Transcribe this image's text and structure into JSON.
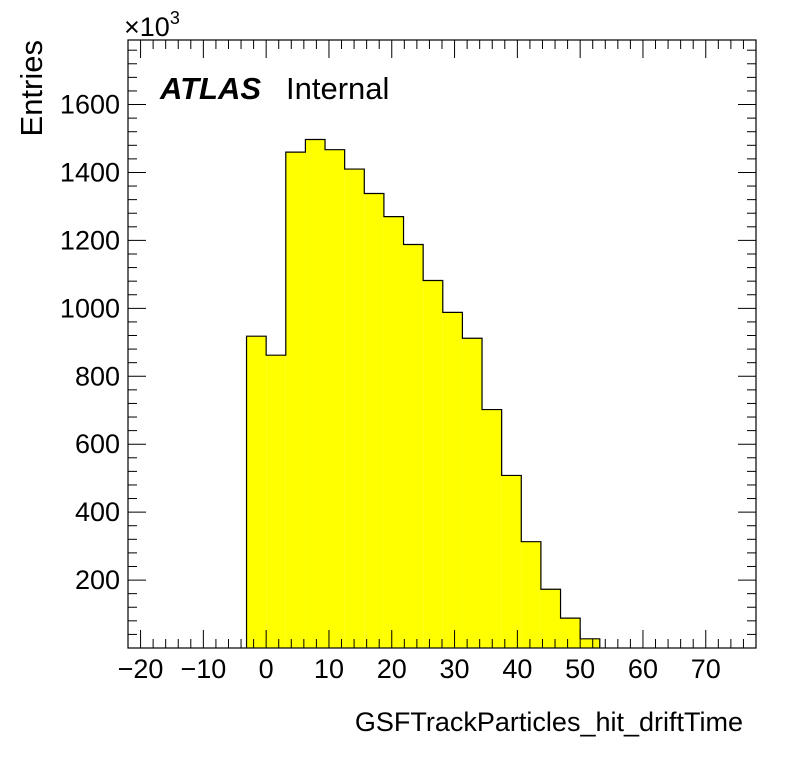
{
  "chart_data": {
    "type": "histogram",
    "title": "",
    "experiment_label": "ATLAS",
    "experiment_status": "Internal",
    "xlabel": "GSFTrackParticles_hit_driftTime",
    "ylabel": "Entries",
    "y_multiplier_label": "×10",
    "y_multiplier_exponent": "3",
    "xlim": [
      -22,
      78
    ],
    "ylim": [
      0,
      1790
    ],
    "x_ticks": [
      -20,
      -10,
      0,
      10,
      20,
      30,
      40,
      50,
      60,
      70
    ],
    "x_tick_labels": [
      "−20",
      "−10",
      "0",
      "10",
      "20",
      "30",
      "40",
      "50",
      "60",
      "70"
    ],
    "y_ticks": [
      200,
      400,
      600,
      800,
      1000,
      1200,
      1400,
      1600
    ],
    "y_tick_labels": [
      "200",
      "400",
      "600",
      "800",
      "1000",
      "1200",
      "1400",
      "1600"
    ],
    "bins": {
      "edges": [
        -3.125,
        0,
        3.125,
        6.25,
        9.375,
        12.5,
        15.625,
        18.75,
        21.875,
        25,
        28.125,
        31.25,
        34.375,
        37.5,
        40.625,
        43.75,
        46.875,
        50,
        53.125
      ],
      "values": [
        918,
        862,
        1460,
        1497,
        1467,
        1410,
        1338,
        1270,
        1188,
        1082,
        988,
        912,
        702,
        508,
        313,
        173,
        88,
        27
      ]
    },
    "fill_color": "#ffff00",
    "line_color": "#000000",
    "grid": false,
    "legend": "none"
  }
}
